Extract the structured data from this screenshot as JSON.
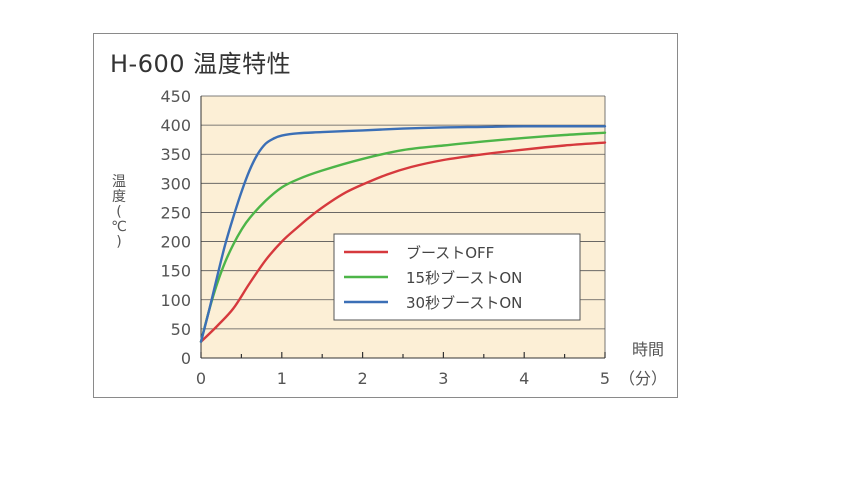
{
  "chart_data": {
    "type": "line",
    "title": "H-600 温度特性",
    "ylabel_chars": [
      "温",
      "度",
      "(",
      "℃",
      ")"
    ],
    "xlabel_top": "時間",
    "xlabel_bottom": "（分）",
    "xlim": [
      0,
      5
    ],
    "ylim": [
      0,
      450
    ],
    "x_ticks": [
      0,
      1,
      2,
      3,
      4,
      5
    ],
    "x_tick_labels": [
      "0",
      "1",
      "2",
      "3",
      "4",
      "5"
    ],
    "y_ticks": [
      0,
      50,
      100,
      150,
      200,
      250,
      300,
      350,
      400,
      450
    ],
    "y_tick_labels": [
      "0",
      "50",
      "100",
      "150",
      "200",
      "250",
      "300",
      "350",
      "400",
      "450"
    ],
    "grid": "horizontal",
    "legend_position": "center-right",
    "colors": {
      "plot_background": "#fcefd6",
      "grid": "#555555",
      "axis": "#333333"
    },
    "series": [
      {
        "name": "ブーストOFF",
        "color": "#d6393d",
        "x": [
          0,
          0.2,
          0.4,
          0.6,
          0.8,
          1.0,
          1.2,
          1.4,
          1.6,
          1.8,
          2.0,
          2.3,
          2.6,
          3.0,
          3.5,
          4.0,
          4.5,
          5.0
        ],
        "y": [
          28,
          55,
          85,
          128,
          168,
          200,
          225,
          248,
          268,
          285,
          298,
          315,
          328,
          340,
          350,
          358,
          365,
          370
        ]
      },
      {
        "name": "15秒ブーストON",
        "color": "#4db548",
        "x": [
          0,
          0.1,
          0.2,
          0.3,
          0.4,
          0.5,
          0.6,
          0.8,
          1.0,
          1.2,
          1.5,
          2.0,
          2.5,
          3.0,
          3.5,
          4.0,
          4.5,
          5.0
        ],
        "y": [
          28,
          82,
          128,
          165,
          195,
          220,
          240,
          270,
          293,
          307,
          322,
          342,
          357,
          365,
          372,
          378,
          383,
          387
        ]
      },
      {
        "name": "30秒ブーストON",
        "color": "#3b6fb6",
        "x": [
          0,
          0.1,
          0.2,
          0.3,
          0.4,
          0.5,
          0.6,
          0.7,
          0.8,
          0.9,
          1.0,
          1.2,
          1.5,
          2.0,
          2.5,
          3.0,
          3.5,
          4.0,
          5.0
        ],
        "y": [
          28,
          82,
          140,
          195,
          242,
          285,
          322,
          350,
          368,
          377,
          382,
          386,
          388,
          391,
          394,
          396,
          397,
          398,
          398
        ]
      }
    ]
  }
}
